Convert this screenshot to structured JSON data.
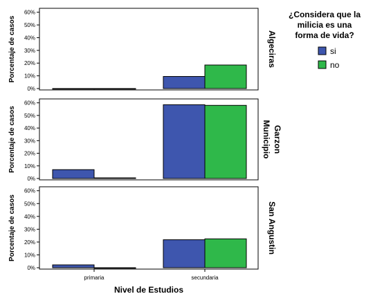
{
  "chart_data": {
    "type": "bar",
    "xlabel": "Nivel de Estudios",
    "ylabel": "Porcentaje de casos",
    "categories": [
      "primaria",
      "secundaria"
    ],
    "yticks": [
      "0%",
      "10%",
      "20%",
      "30%",
      "40%",
      "50%",
      "60%"
    ],
    "ylim": [
      0,
      62
    ],
    "legend": {
      "title_lines": [
        "¿Considera que la",
        "milicia es una",
        "forma de vida?"
      ],
      "placement": "right",
      "entries": [
        {
          "name": "si",
          "color": "#3e56ae"
        },
        {
          "name": "no",
          "color": "#2fb84a"
        }
      ]
    },
    "panels": [
      {
        "label_lines": [
          "Algeciras"
        ],
        "series": [
          {
            "name": "si",
            "values": [
              0,
              9.5
            ]
          },
          {
            "name": "no",
            "values": [
              0,
              18.5
            ]
          }
        ]
      },
      {
        "label_lines": [
          "Municipio",
          "Garzon"
        ],
        "series": [
          {
            "name": "si",
            "values": [
              7.0,
              58.5
            ]
          },
          {
            "name": "no",
            "values": [
              0.5,
              58.0
            ]
          }
        ]
      },
      {
        "label_lines": [
          "San Angustin"
        ],
        "series": [
          {
            "name": "si",
            "values": [
              2.2,
              21.8
            ]
          },
          {
            "name": "no",
            "values": [
              0,
              22.5
            ]
          }
        ]
      }
    ]
  }
}
